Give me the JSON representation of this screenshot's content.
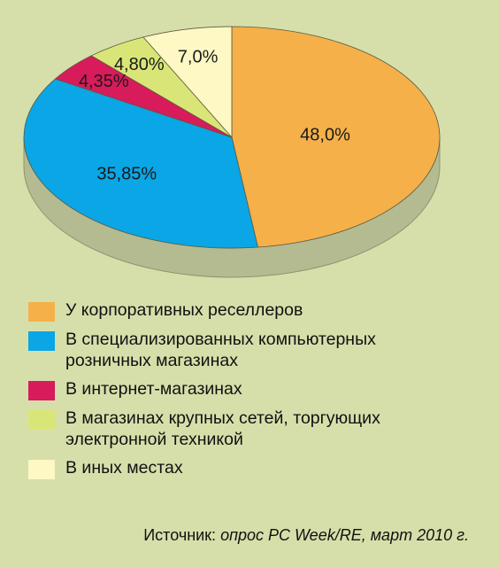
{
  "chart_data": {
    "type": "pie",
    "slices": [
      {
        "label": "У корпоративных реселлеров",
        "value": 48.0,
        "display": "48,0%",
        "color": "#f5b04a"
      },
      {
        "label": "В специализированных компьютерных розничных магазинах",
        "value": 35.85,
        "display": "35,85%",
        "color": "#0aa6e6"
      },
      {
        "label": "В интернет-магазинах",
        "value": 4.35,
        "display": "4,35%",
        "color": "#d81b5a"
      },
      {
        "label": "В магазинах крупных сетей, торгующих электронной техникой",
        "value": 4.8,
        "display": "4,80%",
        "color": "#d9e677"
      },
      {
        "label": "В иных местах",
        "value": 7.0,
        "display": "7,0%",
        "color": "#fef8c4"
      }
    ],
    "legend_placement": "bottom"
  },
  "legend": [
    {
      "line1": "У корпоративных реселлеров",
      "line2": "",
      "color": "#f5b04a"
    },
    {
      "line1": "В специализированных компьютерных",
      "line2": "розничных магазинах",
      "color": "#0aa6e6"
    },
    {
      "line1": "В интернет-магазинах",
      "line2": "",
      "color": "#d81b5a"
    },
    {
      "line1": "В магазинах крупных сетей, торгующих",
      "line2": "электронной техникой",
      "color": "#d9e677"
    },
    {
      "line1": "В иных местах",
      "line2": "",
      "color": "#fef8c4"
    }
  ],
  "source": {
    "label": "Источник:",
    "text": "опрос PC Week/RE, март 2010 г."
  },
  "colors": {
    "background": "#d6dfaa",
    "pie_side": "#b4bb91"
  }
}
